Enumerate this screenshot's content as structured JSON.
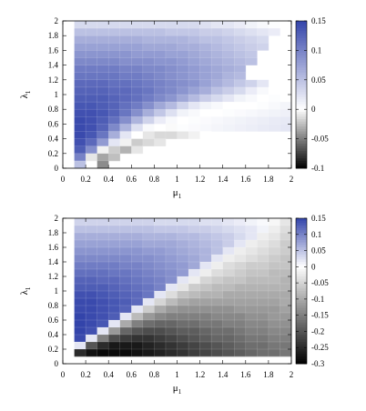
{
  "chart_data": [
    {
      "type": "heatmap",
      "x_name": "μ",
      "x_sub": "1",
      "y_name": "λ",
      "y_sub": "1",
      "xlim": [
        0,
        2
      ],
      "ylim": [
        0,
        2
      ],
      "x_ticks": [
        "0",
        "0.2",
        "0.4",
        "0.6",
        "0.8",
        "1",
        "1.2",
        "1.4",
        "1.6",
        "1.8",
        "2"
      ],
      "y_ticks": [
        "0",
        "0.2",
        "0.4",
        "0.6",
        "0.8",
        "1",
        "1.2",
        "1.4",
        "1.6",
        "1.8",
        "2"
      ],
      "colorbar_ticks": [
        "0.15",
        "0.1",
        "0.05",
        "0",
        "-0.05",
        "-0.1"
      ],
      "colorbar_range": [
        -0.1,
        0.15
      ],
      "colors": {
        "high": "#3344aa",
        "mid": "#ffffff",
        "low": "#000000"
      },
      "grid": {
        "nx": 20,
        "ny": 20
      },
      "x": [
        0.05,
        0.15,
        0.25,
        0.35,
        0.45,
        0.55,
        0.65,
        0.75,
        0.85,
        0.95,
        1.05,
        1.15,
        1.25,
        1.35,
        1.45,
        1.55,
        1.65,
        1.75,
        1.85,
        1.95
      ],
      "y": [
        1.95,
        1.85,
        1.75,
        1.65,
        1.55,
        1.45,
        1.35,
        1.25,
        1.15,
        1.05,
        0.95,
        0.85,
        0.75,
        0.65,
        0.55,
        0.45,
        0.35,
        0.25,
        0.15,
        0.05
      ],
      "z": [
        [
          null,
          0.03,
          0.03,
          0.03,
          0.03,
          0.03,
          0.03,
          0.03,
          0.03,
          0.03,
          0.03,
          0.03,
          0.025,
          0.02,
          0.02,
          0.015,
          0.01,
          0.005,
          0.002,
          0
        ],
        [
          null,
          0.05,
          0.05,
          0.05,
          0.05,
          0.05,
          0.05,
          0.05,
          0.05,
          0.045,
          0.045,
          0.045,
          0.04,
          0.04,
          0.035,
          0.03,
          0.025,
          0.02,
          0.015,
          null
        ],
        [
          null,
          0.065,
          0.065,
          0.065,
          0.065,
          0.065,
          0.065,
          0.06,
          0.06,
          0.06,
          0.06,
          0.055,
          0.05,
          0.05,
          0.045,
          0.04,
          0.035,
          0.03,
          null,
          null
        ],
        [
          null,
          0.075,
          0.075,
          0.075,
          0.075,
          0.075,
          0.075,
          0.07,
          0.07,
          0.07,
          0.065,
          0.065,
          0.06,
          0.055,
          0.05,
          0.045,
          0.04,
          0.035,
          null,
          null
        ],
        [
          null,
          0.085,
          0.085,
          0.085,
          0.085,
          0.085,
          0.08,
          0.08,
          0.08,
          0.075,
          0.075,
          0.07,
          0.065,
          0.06,
          0.055,
          0.05,
          0.045,
          null,
          null,
          null
        ],
        [
          null,
          0.095,
          0.095,
          0.095,
          0.095,
          0.09,
          0.09,
          0.09,
          0.085,
          0.085,
          0.08,
          0.075,
          0.07,
          0.065,
          0.06,
          0.055,
          0.05,
          null,
          null,
          null
        ],
        [
          null,
          0.105,
          0.105,
          0.105,
          0.105,
          0.1,
          0.1,
          0.095,
          0.095,
          0.09,
          0.085,
          0.08,
          0.075,
          0.07,
          0.065,
          0.06,
          null,
          null,
          null,
          null
        ],
        [
          null,
          0.11,
          0.11,
          0.11,
          0.11,
          0.105,
          0.105,
          0.1,
          0.095,
          0.09,
          0.085,
          0.08,
          0.075,
          0.07,
          0.06,
          0.055,
          null,
          null,
          null,
          null
        ],
        [
          null,
          0.12,
          0.12,
          0.12,
          0.115,
          0.115,
          0.11,
          0.105,
          0.1,
          0.095,
          0.09,
          0.085,
          0.075,
          0.065,
          0.055,
          0.045,
          0.035,
          0.02,
          null,
          null
        ],
        [
          null,
          0.125,
          0.125,
          0.125,
          0.12,
          0.12,
          0.115,
          0.11,
          0.1,
          0.095,
          0.085,
          0.075,
          0.065,
          0.05,
          0.04,
          0.03,
          0.015,
          0.005,
          0,
          null
        ],
        [
          null,
          0.13,
          0.13,
          0.13,
          0.125,
          0.12,
          0.115,
          0.105,
          0.095,
          0.085,
          0.07,
          0.055,
          0.04,
          0.03,
          0.02,
          0.01,
          0.005,
          0,
          0.002,
          null
        ],
        [
          null,
          0.135,
          0.135,
          0.13,
          0.125,
          0.115,
          0.105,
          0.09,
          0.07,
          0.055,
          0.035,
          0.02,
          0.01,
          0.005,
          0,
          0,
          0,
          0.002,
          0.005,
          0.008
        ],
        [
          null,
          0.14,
          0.14,
          0.135,
          0.125,
          0.11,
          0.09,
          0.065,
          0.045,
          0.025,
          0.01,
          0.005,
          0,
          0,
          0.002,
          0.004,
          0.006,
          0.008,
          0.01,
          0.012
        ],
        [
          null,
          0.145,
          0.14,
          0.13,
          0.115,
          0.09,
          0.06,
          0.035,
          0.015,
          0.005,
          0,
          0.002,
          0.004,
          0.006,
          0.008,
          0.01,
          0.012,
          0.014,
          0.016,
          0.018
        ],
        [
          null,
          0.145,
          0.14,
          0.125,
          0.095,
          0.06,
          0.025,
          0.005,
          0,
          -0.002,
          0.002,
          0.004,
          0.006,
          0.008,
          0.01,
          0.012,
          0.014,
          0.016,
          0.018,
          0.02
        ],
        [
          null,
          0.145,
          0.135,
          0.11,
          0.065,
          0.02,
          0,
          -0.01,
          -0.015,
          -0.015,
          -0.01,
          -0.005,
          0,
          null,
          null,
          null,
          null,
          null,
          null,
          null
        ],
        [
          null,
          0.14,
          0.12,
          0.08,
          0.02,
          -0.005,
          -0.02,
          -0.015,
          -0.01,
          null,
          null,
          null,
          null,
          null,
          null,
          null,
          null,
          null,
          null,
          null
        ],
        [
          null,
          0.13,
          0.09,
          -0.005,
          -0.02,
          -0.03,
          -0.01,
          null,
          null,
          null,
          null,
          null,
          null,
          null,
          null,
          null,
          null,
          null,
          null,
          null
        ],
        [
          null,
          0.1,
          -0.01,
          -0.035,
          -0.025,
          null,
          null,
          null,
          null,
          null,
          null,
          null,
          null,
          null,
          null,
          null,
          null,
          null,
          null,
          null
        ],
        [
          null,
          0.05,
          null,
          -0.045,
          null,
          null,
          null,
          null,
          null,
          null,
          null,
          null,
          null,
          null,
          null,
          null,
          null,
          null,
          null,
          null
        ]
      ]
    },
    {
      "type": "heatmap",
      "x_name": "μ",
      "x_sub": "1",
      "y_name": "λ",
      "y_sub": "1",
      "xlim": [
        0,
        2
      ],
      "ylim": [
        0,
        2
      ],
      "x_ticks": [
        "0",
        "0.2",
        "0.4",
        "0.6",
        "0.8",
        "1",
        "1.2",
        "1.4",
        "1.6",
        "1.8",
        "2"
      ],
      "y_ticks": [
        "0",
        "0.2",
        "0.4",
        "0.6",
        "0.8",
        "1",
        "1.2",
        "1.4",
        "1.6",
        "1.8",
        "2"
      ],
      "colorbar_ticks": [
        "0.15",
        "0.1",
        "0.05",
        "0",
        "-0.05",
        "-0.1",
        "-0.15",
        "-0.2",
        "-0.25",
        "-0.3"
      ],
      "colorbar_range": [
        -0.3,
        0.15
      ],
      "colors": {
        "high": "#3344aa",
        "mid": "#ffffff",
        "low": "#000000"
      },
      "grid": {
        "nx": 20,
        "ny": 20
      },
      "x": [
        0.05,
        0.15,
        0.25,
        0.35,
        0.45,
        0.55,
        0.65,
        0.75,
        0.85,
        0.95,
        1.05,
        1.15,
        1.25,
        1.35,
        1.45,
        1.55,
        1.65,
        1.75,
        1.85,
        1.95
      ],
      "y": [
        1.95,
        1.85,
        1.75,
        1.65,
        1.55,
        1.45,
        1.35,
        1.25,
        1.15,
        1.05,
        0.95,
        0.85,
        0.75,
        0.65,
        0.55,
        0.45,
        0.35,
        0.25,
        0.15,
        0.05
      ],
      "z": [
        [
          null,
          0.035,
          0.035,
          0.035,
          0.035,
          0.035,
          0.035,
          0.035,
          0.03,
          0.03,
          0.03,
          0.03,
          0.025,
          0.025,
          0.02,
          0.015,
          0.01,
          0.005,
          -0.01,
          -0.03
        ],
        [
          null,
          0.05,
          0.05,
          0.05,
          0.05,
          0.05,
          0.05,
          0.05,
          0.045,
          0.045,
          0.045,
          0.04,
          0.04,
          0.035,
          0.03,
          0.025,
          0.02,
          0.01,
          -0.02,
          -0.04
        ],
        [
          null,
          0.065,
          0.065,
          0.065,
          0.065,
          0.065,
          0.065,
          0.06,
          0.06,
          0.06,
          0.055,
          0.055,
          0.05,
          0.045,
          0.04,
          0.03,
          0.02,
          -0.02,
          -0.03,
          -0.05
        ],
        [
          null,
          0.075,
          0.075,
          0.075,
          0.075,
          0.075,
          0.075,
          0.07,
          0.07,
          0.07,
          0.065,
          0.06,
          0.055,
          0.05,
          0.04,
          0.02,
          -0.02,
          -0.03,
          -0.04,
          -0.06
        ],
        [
          null,
          0.085,
          0.085,
          0.085,
          0.085,
          0.085,
          0.085,
          0.08,
          0.08,
          0.075,
          0.07,
          0.065,
          0.06,
          0.05,
          0.02,
          -0.02,
          -0.03,
          -0.04,
          -0.05,
          -0.06
        ],
        [
          null,
          0.095,
          0.095,
          0.095,
          0.095,
          0.095,
          0.09,
          0.09,
          0.085,
          0.08,
          0.075,
          0.07,
          0.06,
          0.02,
          -0.02,
          -0.03,
          -0.04,
          -0.05,
          -0.06,
          -0.07
        ],
        [
          null,
          0.105,
          0.105,
          0.105,
          0.105,
          0.1,
          0.1,
          0.095,
          0.09,
          0.085,
          0.08,
          0.07,
          0.02,
          -0.02,
          -0.04,
          -0.05,
          -0.06,
          -0.06,
          -0.07,
          -0.07
        ],
        [
          null,
          0.115,
          0.115,
          0.115,
          0.11,
          0.11,
          0.105,
          0.1,
          0.095,
          0.09,
          0.08,
          0.02,
          -0.02,
          -0.04,
          -0.05,
          -0.06,
          -0.07,
          -0.07,
          -0.08,
          -0.08
        ],
        [
          null,
          0.125,
          0.125,
          0.12,
          0.12,
          0.115,
          0.11,
          0.105,
          0.1,
          0.09,
          0.02,
          -0.02,
          -0.05,
          -0.06,
          -0.07,
          -0.07,
          -0.08,
          -0.08,
          -0.08,
          -0.09
        ],
        [
          null,
          0.13,
          0.13,
          0.13,
          0.125,
          0.12,
          0.115,
          0.11,
          0.1,
          0.02,
          -0.03,
          -0.06,
          -0.07,
          -0.08,
          -0.08,
          -0.09,
          -0.09,
          -0.09,
          -0.09,
          -0.09
        ],
        [
          null,
          0.14,
          0.14,
          0.135,
          0.13,
          0.125,
          0.12,
          0.11,
          0.02,
          -0.04,
          -0.07,
          -0.08,
          -0.09,
          -0.09,
          -0.1,
          -0.1,
          -0.1,
          -0.1,
          -0.1,
          -0.1
        ],
        [
          null,
          0.145,
          0.145,
          0.14,
          0.135,
          0.13,
          0.12,
          0.02,
          -0.05,
          -0.08,
          -0.1,
          -0.11,
          -0.11,
          -0.11,
          -0.11,
          -0.11,
          -0.11,
          -0.11,
          -0.11,
          -0.1
        ],
        [
          null,
          0.145,
          0.145,
          0.14,
          0.135,
          0.125,
          0.02,
          -0.06,
          -0.1,
          -0.12,
          -0.13,
          -0.13,
          -0.13,
          -0.13,
          -0.13,
          -0.12,
          -0.12,
          -0.12,
          -0.12,
          -0.11
        ],
        [
          null,
          0.15,
          0.145,
          0.14,
          0.13,
          0.02,
          -0.08,
          -0.12,
          -0.14,
          -0.15,
          -0.15,
          -0.15,
          -0.15,
          -0.14,
          -0.14,
          -0.14,
          -0.13,
          -0.13,
          -0.12,
          -0.12
        ],
        [
          null,
          0.15,
          0.145,
          0.135,
          0.02,
          -0.1,
          -0.15,
          -0.17,
          -0.18,
          -0.18,
          -0.17,
          -0.17,
          -0.16,
          -0.16,
          -0.15,
          -0.15,
          -0.14,
          -0.14,
          -0.13,
          -0.13
        ],
        [
          null,
          0.15,
          0.14,
          0.02,
          -0.12,
          -0.18,
          -0.2,
          -0.21,
          -0.21,
          -0.2,
          -0.19,
          -0.19,
          -0.18,
          -0.17,
          -0.17,
          -0.16,
          -0.15,
          -0.15,
          -0.14,
          -0.14
        ],
        [
          null,
          0.145,
          0.02,
          -0.15,
          -0.21,
          -0.23,
          -0.24,
          -0.24,
          -0.23,
          -0.22,
          -0.21,
          -0.2,
          -0.19,
          -0.18,
          -0.18,
          -0.17,
          -0.16,
          -0.16,
          -0.15,
          -0.15
        ],
        [
          null,
          0.02,
          -0.2,
          -0.25,
          -0.27,
          -0.27,
          -0.27,
          -0.26,
          -0.25,
          -0.24,
          -0.23,
          -0.22,
          -0.21,
          -0.2,
          -0.19,
          -0.18,
          -0.17,
          -0.17,
          -0.16,
          -0.16
        ],
        [
          null,
          -0.25,
          -0.28,
          -0.29,
          -0.29,
          -0.29,
          -0.28,
          -0.27,
          -0.26,
          -0.25,
          -0.24,
          -0.23,
          -0.22,
          -0.21,
          -0.2,
          -0.19,
          -0.18,
          -0.17,
          -0.17,
          -0.16
        ],
        [
          null,
          null,
          null,
          null,
          null,
          null,
          null,
          null,
          null,
          null,
          null,
          null,
          null,
          null,
          null,
          null,
          null,
          null,
          null,
          null
        ]
      ]
    }
  ]
}
